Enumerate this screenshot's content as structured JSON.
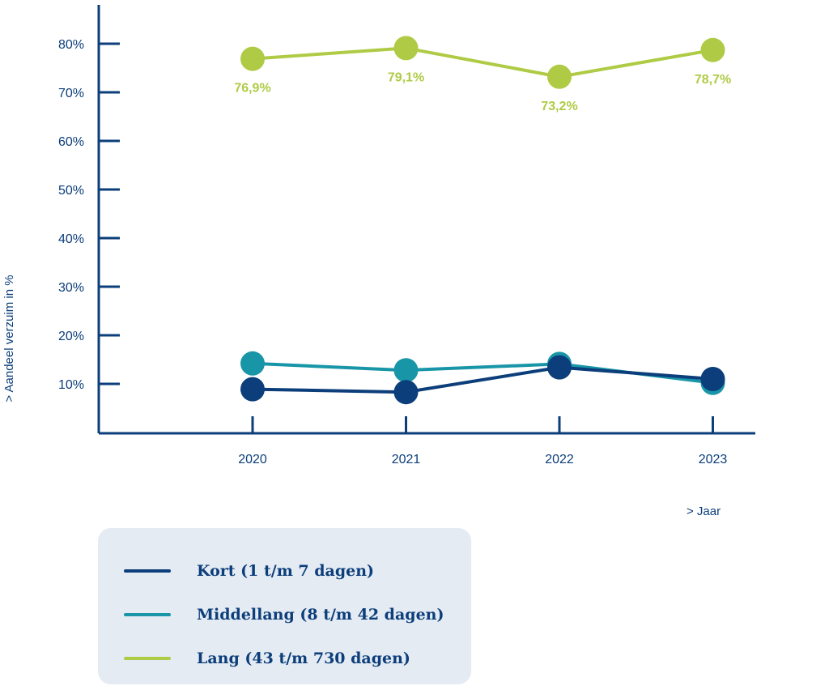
{
  "chart_data": {
    "type": "line",
    "x": [
      "2020",
      "2021",
      "2022",
      "2023"
    ],
    "ylabel": "> Aandeel verzuim in %",
    "xlabel": ">  Jaar",
    "ylim": [
      0,
      80
    ],
    "yticks": [
      {
        "value": 80,
        "label": "80%"
      },
      {
        "value": 70,
        "label": "70%"
      },
      {
        "value": 60,
        "label": "60%"
      },
      {
        "value": 50,
        "label": "50%"
      },
      {
        "value": 40,
        "label": "40%"
      },
      {
        "value": 30,
        "label": "30%"
      },
      {
        "value": 20,
        "label": "20%"
      },
      {
        "value": 10,
        "label": "10%"
      }
    ],
    "series": [
      {
        "name": "Lang (43 t/m 730 dagen)",
        "color": "#afcb45",
        "values": [
          76.9,
          79.1,
          73.2,
          78.7
        ],
        "data_labels": [
          "76,9%",
          "79,1%",
          "73,2%",
          "78,7%"
        ]
      },
      {
        "name": "Middellang (8 t/m 42 dagen)",
        "color": "#1896a8",
        "values": [
          14.2,
          12.8,
          14.1,
          10.2
        ]
      },
      {
        "name": "Kort (1 t/m 7 dagen)",
        "color": "#0b3e7a",
        "values": [
          8.9,
          8.3,
          13.4,
          11.0
        ]
      }
    ],
    "grid": false,
    "legend_position": "bottom-left"
  },
  "legend": [
    {
      "label": "Kort (1 t/m 7 dagen)",
      "color": "#0b3e7a"
    },
    {
      "label": "Middellang (8 t/m 42 dagen)",
      "color": "#1896a8"
    },
    {
      "label": "Lang (43 t/m 730 dagen)",
      "color": "#afcb45"
    }
  ]
}
